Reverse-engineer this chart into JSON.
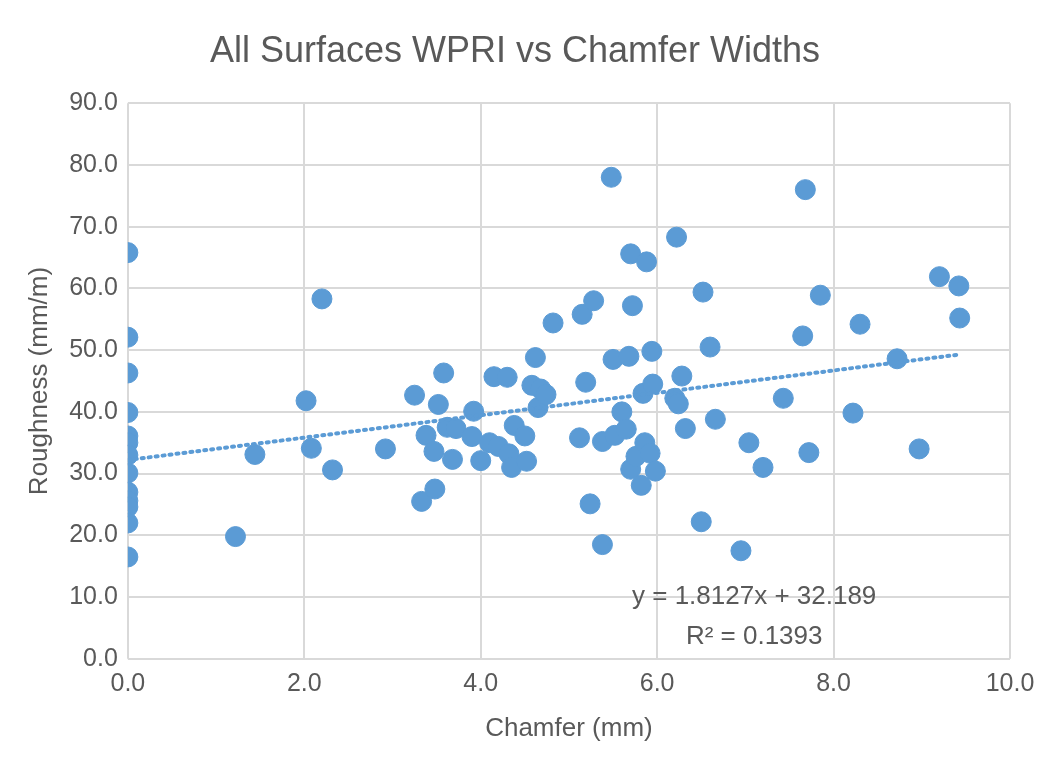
{
  "chart_data": {
    "type": "scatter",
    "title": "All Surfaces WPRI vs Chamfer Widths",
    "xlabel": "Chamfer (mm)",
    "ylabel": "Roughness (mm/m)",
    "xlim": [
      0,
      10
    ],
    "ylim": [
      0,
      90
    ],
    "xticks": [
      {
        "value": 0,
        "label": "0.0"
      },
      {
        "value": 2,
        "label": "2.0"
      },
      {
        "value": 4,
        "label": "4.0"
      },
      {
        "value": 6,
        "label": "6.0"
      },
      {
        "value": 8,
        "label": "8.0"
      },
      {
        "value": 10,
        "label": "10.0"
      }
    ],
    "yticks": [
      {
        "value": 0,
        "label": "0.0"
      },
      {
        "value": 10,
        "label": "10.0"
      },
      {
        "value": 20,
        "label": "20.0"
      },
      {
        "value": 30,
        "label": "30.0"
      },
      {
        "value": 40,
        "label": "40.0"
      },
      {
        "value": 50,
        "label": "50.0"
      },
      {
        "value": 60,
        "label": "60.0"
      },
      {
        "value": 70,
        "label": "70.0"
      },
      {
        "value": 80,
        "label": "80.0"
      },
      {
        "value": 90,
        "label": "90.0"
      }
    ],
    "grid": true,
    "marker": "circle",
    "series": [
      {
        "color": "#5b9bd5",
        "x": [
          0,
          0,
          0,
          0,
          0,
          0,
          0,
          0,
          0,
          0,
          0,
          0,
          0,
          1.22,
          1.44,
          2.02,
          2.08,
          2.2,
          2.32,
          2.92,
          3.25,
          3.33,
          3.38,
          3.47,
          3.48,
          3.52,
          3.58,
          3.62,
          3.68,
          3.72,
          3.9,
          3.92,
          4.0,
          4.1,
          4.15,
          4.2,
          4.3,
          4.32,
          4.35,
          4.38,
          4.5,
          4.52,
          4.58,
          4.62,
          4.65,
          4.68,
          4.74,
          4.82,
          5.12,
          5.15,
          5.19,
          5.24,
          5.28,
          5.38,
          5.38,
          5.48,
          5.5,
          5.52,
          5.6,
          5.65,
          5.68,
          5.7,
          5.72,
          5.7,
          5.76,
          5.82,
          5.84,
          5.86,
          5.88,
          5.92,
          5.94,
          5.95,
          5.98,
          6.2,
          6.22,
          6.24,
          6.28,
          6.32,
          6.5,
          6.52,
          6.6,
          6.66,
          6.95,
          7.04,
          7.2,
          7.43,
          7.65,
          7.68,
          7.72,
          7.85,
          8.22,
          8.3,
          8.72,
          8.97,
          9.2,
          9.42,
          9.43
        ],
        "values": [
          65.8,
          52.1,
          46.3,
          39.9,
          36.1,
          35.0,
          33.0,
          30.1,
          27.0,
          25.6,
          24.6,
          22.0,
          16.5,
          19.8,
          33.1,
          41.8,
          34.1,
          58.3,
          30.6,
          34.0,
          42.7,
          25.5,
          36.2,
          33.6,
          27.5,
          41.2,
          46.3,
          37.5,
          32.3,
          37.3,
          36.0,
          40.1,
          32.1,
          35.0,
          45.7,
          34.4,
          45.6,
          33.2,
          31.0,
          37.8,
          36.1,
          32.0,
          44.3,
          48.8,
          40.7,
          43.7,
          42.8,
          54.4,
          35.8,
          55.8,
          44.8,
          25.1,
          58.0,
          35.2,
          18.5,
          78.0,
          48.5,
          36.2,
          40.0,
          37.2,
          49.0,
          65.6,
          57.2,
          30.7,
          32.8,
          28.1,
          43.0,
          35.0,
          64.3,
          33.3,
          49.8,
          44.5,
          30.4,
          42.2,
          68.3,
          41.3,
          45.8,
          37.3,
          22.2,
          59.4,
          50.5,
          38.8,
          17.5,
          35.0,
          31.0,
          42.2,
          52.3,
          76.0,
          33.4,
          58.9,
          39.8,
          54.2,
          48.6,
          34.0,
          61.9,
          60.4,
          55.2
        ]
      },
      {
        "type": "line",
        "color": "#5b9bd5",
        "line_style": "dotted",
        "marker": "none",
        "x": [
          0,
          9.43
        ],
        "values": [
          32.2,
          49.3
        ]
      }
    ],
    "annotations": [
      "y = 1.8127x + 32.189",
      "R² = 0.1393"
    ]
  }
}
